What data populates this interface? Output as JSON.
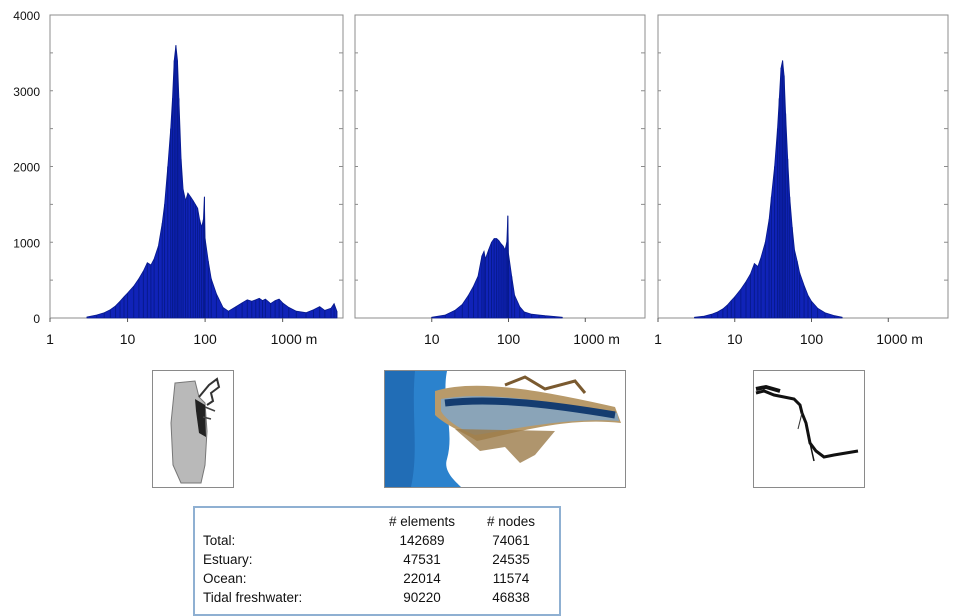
{
  "chart_data": [
    {
      "type": "bar",
      "xlabel": "",
      "ylabel": "",
      "x_scale": "log",
      "xlim": [
        1,
        6000
      ],
      "ylim": [
        0,
        4000
      ],
      "y_ticks": [
        "0",
        "1000",
        "2000",
        "3000",
        "4000"
      ],
      "x_ticks": [
        "1",
        "10",
        "100",
        "1000 m"
      ],
      "points": [
        [
          3,
          15
        ],
        [
          4,
          40
        ],
        [
          5,
          70
        ],
        [
          6,
          110
        ],
        [
          7,
          160
        ],
        [
          8,
          220
        ],
        [
          9,
          280
        ],
        [
          10,
          330
        ],
        [
          12,
          420
        ],
        [
          14,
          520
        ],
        [
          16,
          620
        ],
        [
          18,
          730
        ],
        [
          20,
          700
        ],
        [
          22,
          780
        ],
        [
          25,
          950
        ],
        [
          28,
          1250
        ],
        [
          30,
          1500
        ],
        [
          33,
          2000
        ],
        [
          36,
          2500
        ],
        [
          38,
          2900
        ],
        [
          40,
          3400
        ],
        [
          42,
          3600
        ],
        [
          44,
          3400
        ],
        [
          46,
          2900
        ],
        [
          49,
          2100
        ],
        [
          52,
          1700
        ],
        [
          56,
          1550
        ],
        [
          60,
          1650
        ],
        [
          65,
          1600
        ],
        [
          70,
          1550
        ],
        [
          75,
          1500
        ],
        [
          80,
          1450
        ],
        [
          85,
          1300
        ],
        [
          90,
          1200
        ],
        [
          95,
          1300
        ],
        [
          98,
          1600
        ],
        [
          100,
          1050
        ],
        [
          110,
          750
        ],
        [
          120,
          520
        ],
        [
          140,
          320
        ],
        [
          170,
          140
        ],
        [
          200,
          90
        ],
        [
          250,
          150
        ],
        [
          300,
          200
        ],
        [
          350,
          240
        ],
        [
          400,
          220
        ],
        [
          450,
          240
        ],
        [
          500,
          260
        ],
        [
          550,
          230
        ],
        [
          600,
          250
        ],
        [
          700,
          190
        ],
        [
          800,
          230
        ],
        [
          900,
          250
        ],
        [
          1000,
          200
        ],
        [
          1200,
          140
        ],
        [
          1500,
          90
        ],
        [
          2000,
          70
        ],
        [
          2500,
          110
        ],
        [
          3000,
          150
        ],
        [
          3500,
          100
        ],
        [
          4200,
          130
        ],
        [
          4600,
          190
        ],
        [
          5000,
          90
        ]
      ]
    },
    {
      "type": "bar",
      "xlabel": "",
      "ylabel": "",
      "x_scale": "log",
      "xlim": [
        1,
        6000
      ],
      "ylim": [
        0,
        4000
      ],
      "x_ticks": [
        "10",
        "100",
        "1000 m"
      ],
      "points": [
        [
          10,
          10
        ],
        [
          15,
          40
        ],
        [
          20,
          100
        ],
        [
          25,
          180
        ],
        [
          30,
          300
        ],
        [
          35,
          420
        ],
        [
          40,
          550
        ],
        [
          45,
          820
        ],
        [
          48,
          880
        ],
        [
          50,
          780
        ],
        [
          55,
          900
        ],
        [
          60,
          1000
        ],
        [
          65,
          1050
        ],
        [
          70,
          1050
        ],
        [
          75,
          1020
        ],
        [
          80,
          980
        ],
        [
          85,
          950
        ],
        [
          90,
          900
        ],
        [
          95,
          1000
        ],
        [
          98,
          1350
        ],
        [
          100,
          850
        ],
        [
          110,
          550
        ],
        [
          120,
          300
        ],
        [
          140,
          150
        ],
        [
          160,
          80
        ],
        [
          200,
          50
        ],
        [
          250,
          40
        ],
        [
          300,
          30
        ],
        [
          400,
          20
        ],
        [
          500,
          10
        ]
      ]
    },
    {
      "type": "bar",
      "xlabel": "",
      "ylabel": "",
      "x_scale": "log",
      "xlim": [
        1,
        6000
      ],
      "ylim": [
        0,
        4000
      ],
      "x_ticks": [
        "1",
        "10",
        "100",
        "1000 m"
      ],
      "points": [
        [
          3,
          10
        ],
        [
          4,
          25
        ],
        [
          5,
          50
        ],
        [
          6,
          80
        ],
        [
          7,
          120
        ],
        [
          8,
          170
        ],
        [
          9,
          230
        ],
        [
          10,
          280
        ],
        [
          12,
          380
        ],
        [
          14,
          480
        ],
        [
          16,
          580
        ],
        [
          18,
          720
        ],
        [
          20,
          680
        ],
        [
          22,
          800
        ],
        [
          25,
          1000
        ],
        [
          28,
          1300
        ],
        [
          30,
          1600
        ],
        [
          33,
          2000
        ],
        [
          36,
          2500
        ],
        [
          38,
          2900
        ],
        [
          40,
          3300
        ],
        [
          42,
          3400
        ],
        [
          44,
          3200
        ],
        [
          46,
          2700
        ],
        [
          49,
          2100
        ],
        [
          52,
          1600
        ],
        [
          56,
          1200
        ],
        [
          60,
          900
        ],
        [
          65,
          750
        ],
        [
          70,
          600
        ],
        [
          80,
          430
        ],
        [
          90,
          300
        ],
        [
          100,
          220
        ],
        [
          120,
          130
        ],
        [
          150,
          70
        ],
        [
          200,
          30
        ],
        [
          250,
          10
        ]
      ]
    }
  ],
  "stats_table": {
    "headers": [
      "# elements",
      "# nodes"
    ],
    "rows": [
      {
        "label": "Total:",
        "elements": "142689",
        "nodes": "74061"
      },
      {
        "label": "Estuary:",
        "elements": "47531",
        "nodes": "24535"
      },
      {
        "label": "Ocean:",
        "elements": "22014",
        "nodes": "11574"
      },
      {
        "label": "Tidal freshwater:",
        "elements": "90220",
        "nodes": "46838"
      }
    ]
  },
  "colors": {
    "bar": "#1023b8",
    "bar_edge": "#071a8e",
    "frame": "#8c8c8c",
    "ocean": "#2a7fc8",
    "land": "#c8b087"
  }
}
